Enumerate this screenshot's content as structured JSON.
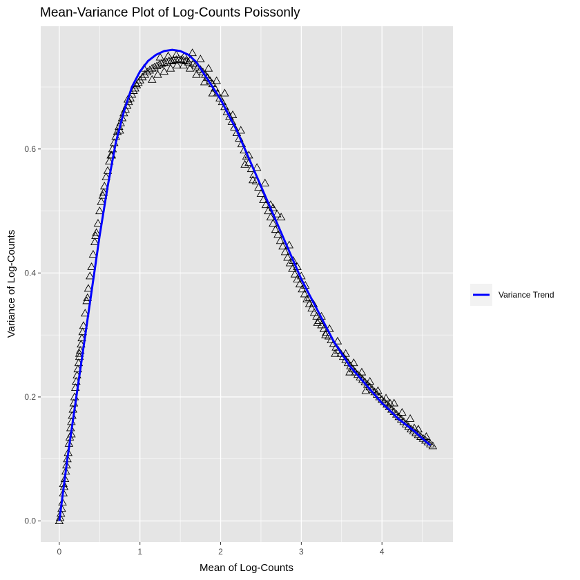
{
  "colors": {
    "panel_background": "#e5e5e5",
    "grid": "#ffffff",
    "trend_line": "#0000ff",
    "points_stroke": "#000000"
  },
  "chart_data": {
    "type": "scatter",
    "title": "Mean-Variance Plot of Log-Counts Poissonly",
    "xlabel": "Mean of Log-Counts",
    "ylabel": "Variance of Log-Counts",
    "xlim": [
      -0.23,
      4.88
    ],
    "ylim": [
      -0.034,
      0.798
    ],
    "x_ticks": [
      "0",
      "1",
      "2",
      "3",
      "4"
    ],
    "y_ticks": [
      "0.0",
      "0.2",
      "0.4",
      "0.6"
    ],
    "grid": true,
    "point_marker": "triangle-open",
    "legend": {
      "position": "right",
      "entries": [
        "Variance Trend"
      ]
    },
    "trend": {
      "name": "Variance Trend",
      "x": [
        0,
        0.05,
        0.1,
        0.2,
        0.3,
        0.4,
        0.5,
        0.6,
        0.7,
        0.8,
        0.9,
        1.0,
        1.1,
        1.2,
        1.3,
        1.4,
        1.5,
        1.6,
        1.7,
        1.8,
        1.9,
        2.0,
        2.1,
        2.2,
        2.3,
        2.4,
        2.5,
        2.6,
        2.7,
        2.8,
        2.9,
        3.0,
        3.1,
        3.2,
        3.3,
        3.4,
        3.5,
        3.6,
        3.7,
        3.8,
        3.9,
        4.0,
        4.1,
        4.2,
        4.3,
        4.4,
        4.5,
        4.6
      ],
      "y": [
        0.0,
        0.05,
        0.1,
        0.19,
        0.28,
        0.37,
        0.46,
        0.54,
        0.61,
        0.66,
        0.7,
        0.725,
        0.742,
        0.752,
        0.758,
        0.76,
        0.758,
        0.752,
        0.74,
        0.72,
        0.7,
        0.68,
        0.655,
        0.63,
        0.6,
        0.57,
        0.54,
        0.51,
        0.48,
        0.45,
        0.42,
        0.39,
        0.365,
        0.34,
        0.315,
        0.29,
        0.27,
        0.25,
        0.235,
        0.22,
        0.205,
        0.19,
        0.178,
        0.165,
        0.155,
        0.145,
        0.133,
        0.122
      ]
    },
    "points": [
      [
        0.0,
        0.0
      ],
      [
        0.01,
        0.005
      ],
      [
        0.02,
        0.012
      ],
      [
        0.03,
        0.02
      ],
      [
        0.04,
        0.03
      ],
      [
        0.05,
        0.045
      ],
      [
        0.06,
        0.055
      ],
      [
        0.07,
        0.068
      ],
      [
        0.08,
        0.08
      ],
      [
        0.09,
        0.09
      ],
      [
        0.1,
        0.1
      ],
      [
        0.11,
        0.11
      ],
      [
        0.12,
        0.125
      ],
      [
        0.13,
        0.135
      ],
      [
        0.14,
        0.15
      ],
      [
        0.15,
        0.16
      ],
      [
        0.16,
        0.17
      ],
      [
        0.17,
        0.18
      ],
      [
        0.18,
        0.19
      ],
      [
        0.19,
        0.2
      ],
      [
        0.2,
        0.215
      ],
      [
        0.21,
        0.225
      ],
      [
        0.22,
        0.235
      ],
      [
        0.23,
        0.245
      ],
      [
        0.24,
        0.255
      ],
      [
        0.25,
        0.265
      ],
      [
        0.26,
        0.275
      ],
      [
        0.27,
        0.285
      ],
      [
        0.28,
        0.295
      ],
      [
        0.29,
        0.305
      ],
      [
        0.3,
        0.315
      ],
      [
        0.32,
        0.335
      ],
      [
        0.34,
        0.355
      ],
      [
        0.36,
        0.375
      ],
      [
        0.38,
        0.395
      ],
      [
        0.4,
        0.41
      ],
      [
        0.42,
        0.43
      ],
      [
        0.44,
        0.45
      ],
      [
        0.46,
        0.465
      ],
      [
        0.48,
        0.48
      ],
      [
        0.5,
        0.5
      ],
      [
        0.52,
        0.515
      ],
      [
        0.54,
        0.525
      ],
      [
        0.56,
        0.54
      ],
      [
        0.58,
        0.555
      ],
      [
        0.6,
        0.565
      ],
      [
        0.62,
        0.58
      ],
      [
        0.64,
        0.59
      ],
      [
        0.66,
        0.6
      ],
      [
        0.68,
        0.61
      ],
      [
        0.7,
        0.62
      ],
      [
        0.72,
        0.628
      ],
      [
        0.74,
        0.636
      ],
      [
        0.76,
        0.642
      ],
      [
        0.78,
        0.65
      ],
      [
        0.8,
        0.658
      ],
      [
        0.82,
        0.664
      ],
      [
        0.84,
        0.67
      ],
      [
        0.86,
        0.676
      ],
      [
        0.88,
        0.682
      ],
      [
        0.9,
        0.688
      ],
      [
        0.92,
        0.694
      ],
      [
        0.94,
        0.698
      ],
      [
        0.96,
        0.703
      ],
      [
        0.98,
        0.707
      ],
      [
        1.0,
        0.711
      ],
      [
        1.03,
        0.716
      ],
      [
        1.06,
        0.72
      ],
      [
        1.09,
        0.724
      ],
      [
        1.12,
        0.727
      ],
      [
        1.15,
        0.73
      ],
      [
        1.18,
        0.732
      ],
      [
        1.21,
        0.734
      ],
      [
        1.24,
        0.736
      ],
      [
        1.27,
        0.738
      ],
      [
        1.3,
        0.739
      ],
      [
        1.33,
        0.74
      ],
      [
        1.36,
        0.742
      ],
      [
        1.39,
        0.742
      ],
      [
        1.42,
        0.743
      ],
      [
        1.45,
        0.744
      ],
      [
        1.48,
        0.745
      ],
      [
        1.51,
        0.744
      ],
      [
        1.54,
        0.743
      ],
      [
        1.57,
        0.742
      ],
      [
        1.6,
        0.74
      ],
      [
        1.63,
        0.745
      ],
      [
        1.66,
        0.738
      ],
      [
        1.69,
        0.735
      ],
      [
        1.72,
        0.732
      ],
      [
        1.75,
        0.728
      ],
      [
        1.78,
        0.724
      ],
      [
        1.81,
        0.72
      ],
      [
        1.84,
        0.715
      ],
      [
        1.87,
        0.71
      ],
      [
        1.9,
        0.705
      ],
      [
        1.93,
        0.698
      ],
      [
        1.96,
        0.69
      ],
      [
        1.99,
        0.682
      ],
      [
        2.02,
        0.676
      ],
      [
        2.05,
        0.668
      ],
      [
        2.08,
        0.66
      ],
      [
        2.11,
        0.652
      ],
      [
        2.14,
        0.644
      ],
      [
        2.17,
        0.635
      ],
      [
        2.2,
        0.626
      ],
      [
        2.23,
        0.617
      ],
      [
        2.26,
        0.608
      ],
      [
        2.29,
        0.598
      ],
      [
        2.32,
        0.588
      ],
      [
        2.35,
        0.578
      ],
      [
        2.38,
        0.568
      ],
      [
        2.41,
        0.558
      ],
      [
        2.44,
        0.548
      ],
      [
        2.47,
        0.538
      ],
      [
        2.5,
        0.528
      ],
      [
        2.53,
        0.518
      ],
      [
        2.56,
        0.51
      ],
      [
        2.59,
        0.5
      ],
      [
        2.62,
        0.49
      ],
      [
        2.65,
        0.48
      ],
      [
        2.68,
        0.47
      ],
      [
        2.71,
        0.462
      ],
      [
        2.74,
        0.452
      ],
      [
        2.77,
        0.443
      ],
      [
        2.8,
        0.434
      ],
      [
        2.83,
        0.425
      ],
      [
        2.86,
        0.416
      ],
      [
        2.89,
        0.407
      ],
      [
        2.92,
        0.398
      ],
      [
        2.95,
        0.39
      ],
      [
        2.98,
        0.382
      ],
      [
        3.01,
        0.374
      ],
      [
        3.04,
        0.366
      ],
      [
        3.07,
        0.358
      ],
      [
        3.1,
        0.35
      ],
      [
        3.13,
        0.343
      ],
      [
        3.16,
        0.336
      ],
      [
        3.19,
        0.33
      ],
      [
        3.22,
        0.323
      ],
      [
        3.25,
        0.316
      ],
      [
        3.28,
        0.31
      ],
      [
        3.31,
        0.304
      ],
      [
        3.34,
        0.298
      ],
      [
        3.37,
        0.292
      ],
      [
        3.4,
        0.286
      ],
      [
        3.43,
        0.28
      ],
      [
        3.46,
        0.275
      ],
      [
        3.49,
        0.27
      ],
      [
        3.52,
        0.265
      ],
      [
        3.55,
        0.26
      ],
      [
        3.58,
        0.255
      ],
      [
        3.61,
        0.25
      ],
      [
        3.64,
        0.245
      ],
      [
        3.67,
        0.24
      ],
      [
        3.7,
        0.236
      ],
      [
        3.73,
        0.232
      ],
      [
        3.76,
        0.228
      ],
      [
        3.79,
        0.224
      ],
      [
        3.82,
        0.22
      ],
      [
        3.85,
        0.216
      ],
      [
        3.88,
        0.212
      ],
      [
        3.91,
        0.208
      ],
      [
        3.94,
        0.204
      ],
      [
        3.97,
        0.2
      ],
      [
        4.0,
        0.196
      ],
      [
        4.03,
        0.192
      ],
      [
        4.06,
        0.188
      ],
      [
        4.09,
        0.184
      ],
      [
        4.12,
        0.18
      ],
      [
        4.15,
        0.176
      ],
      [
        4.18,
        0.172
      ],
      [
        4.21,
        0.168
      ],
      [
        4.24,
        0.164
      ],
      [
        4.27,
        0.16
      ],
      [
        4.3,
        0.156
      ],
      [
        4.33,
        0.152
      ],
      [
        4.36,
        0.148
      ],
      [
        4.39,
        0.145
      ],
      [
        4.42,
        0.142
      ],
      [
        4.45,
        0.139
      ],
      [
        4.48,
        0.136
      ],
      [
        4.51,
        0.133
      ],
      [
        4.54,
        0.13
      ],
      [
        4.57,
        0.127
      ],
      [
        4.6,
        0.124
      ],
      [
        4.63,
        0.121
      ],
      [
        0.05,
        0.06
      ],
      [
        0.15,
        0.14
      ],
      [
        0.25,
        0.27
      ],
      [
        0.35,
        0.36
      ],
      [
        0.45,
        0.46
      ],
      [
        0.55,
        0.53
      ],
      [
        0.65,
        0.59
      ],
      [
        0.75,
        0.63
      ],
      [
        0.85,
        0.68
      ],
      [
        0.95,
        0.705
      ],
      [
        1.05,
        0.73
      ],
      [
        1.25,
        0.748
      ],
      [
        1.35,
        0.75
      ],
      [
        1.45,
        0.752
      ],
      [
        1.55,
        0.75
      ],
      [
        1.65,
        0.755
      ],
      [
        1.75,
        0.745
      ],
      [
        1.85,
        0.73
      ],
      [
        1.95,
        0.71
      ],
      [
        2.05,
        0.69
      ],
      [
        2.15,
        0.655
      ],
      [
        2.25,
        0.63
      ],
      [
        2.35,
        0.59
      ],
      [
        2.45,
        0.57
      ],
      [
        2.55,
        0.545
      ],
      [
        2.65,
        0.505
      ],
      [
        2.75,
        0.49
      ],
      [
        2.85,
        0.445
      ],
      [
        2.95,
        0.41
      ],
      [
        3.05,
        0.38
      ],
      [
        3.15,
        0.35
      ],
      [
        3.25,
        0.33
      ],
      [
        3.35,
        0.31
      ],
      [
        3.45,
        0.29
      ],
      [
        3.55,
        0.27
      ],
      [
        3.65,
        0.255
      ],
      [
        3.75,
        0.24
      ],
      [
        3.85,
        0.225
      ],
      [
        3.95,
        0.21
      ],
      [
        4.05,
        0.198
      ],
      [
        4.15,
        0.19
      ],
      [
        4.25,
        0.175
      ],
      [
        4.35,
        0.165
      ],
      [
        4.45,
        0.148
      ],
      [
        4.55,
        0.136
      ],
      [
        1.15,
        0.712
      ],
      [
        1.22,
        0.72
      ],
      [
        1.3,
        0.725
      ],
      [
        1.38,
        0.73
      ],
      [
        1.46,
        0.735
      ],
      [
        1.54,
        0.735
      ],
      [
        1.62,
        0.73
      ],
      [
        1.7,
        0.72
      ],
      [
        1.8,
        0.708
      ],
      [
        1.9,
        0.69
      ],
      [
        2.3,
        0.575
      ],
      [
        2.4,
        0.55
      ],
      [
        2.62,
        0.51
      ],
      [
        2.7,
        0.495
      ],
      [
        2.9,
        0.42
      ],
      [
        3.0,
        0.395
      ],
      [
        3.1,
        0.36
      ],
      [
        3.2,
        0.32
      ],
      [
        3.3,
        0.3
      ],
      [
        3.42,
        0.27
      ],
      [
        3.6,
        0.24
      ],
      [
        3.8,
        0.21
      ],
      [
        4.1,
        0.19
      ],
      [
        4.4,
        0.15
      ]
    ]
  }
}
